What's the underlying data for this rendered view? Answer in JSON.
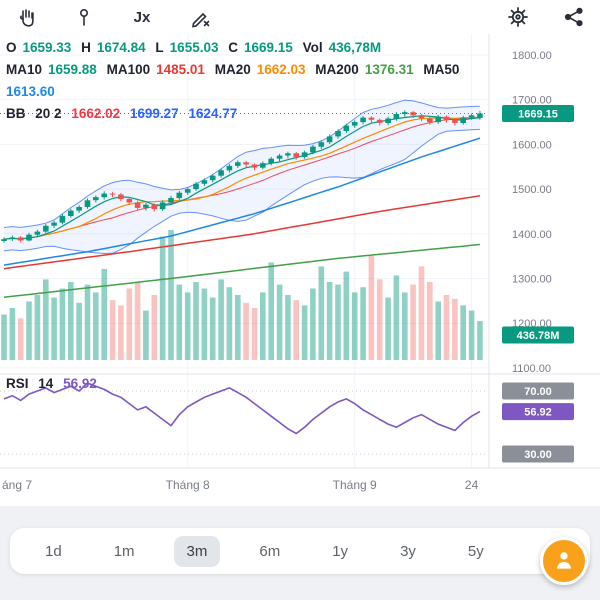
{
  "toolbar": {
    "fx_label": "Jx"
  },
  "legend": {
    "ohlc": [
      {
        "label": "O",
        "value": "1659.33"
      },
      {
        "label": "H",
        "value": "1674.84"
      },
      {
        "label": "L",
        "value": "1655.03"
      },
      {
        "label": "C",
        "value": "1669.15"
      },
      {
        "label": "Vol",
        "value": "436,78M"
      }
    ],
    "ma": [
      {
        "label": "MA10",
        "value": "1659.88"
      },
      {
        "label": "MA100",
        "value": "1485.01"
      },
      {
        "label": "MA20",
        "value": "1662.03"
      },
      {
        "label": "MA200",
        "value": "1376.31"
      },
      {
        "label": "MA50",
        "value": "1613.60"
      }
    ],
    "bb": {
      "name": "BB",
      "params": "20 2",
      "values": [
        "1662.02",
        "1699.27",
        "1624.77"
      ]
    }
  },
  "rsi_legend": {
    "name": "RSI",
    "length": "14",
    "value": "56.92"
  },
  "badges": {
    "price": "1669.15",
    "volume": "436.78M",
    "rsi_upper": "70.00",
    "rsi_value": "56.92",
    "rsi_lower": "30.00"
  },
  "range": {
    "buttons": [
      "1d",
      "1m",
      "3m",
      "6m",
      "1y",
      "3y",
      "5y"
    ],
    "selected_index": 2
  },
  "palette": {
    "up": "#089981",
    "down": "#ef5350",
    "volUp": "rgba(8,153,129,0.45)",
    "volDown": "rgba(239,83,80,0.35)",
    "ma10": "#089981",
    "ma20": "#fb8c00",
    "ma50": "#1e88e5",
    "ma100": "#e53935",
    "ma200": "#43a047",
    "bbBand": "#2962ff",
    "bbBasis": "#f23645",
    "bbFill": "rgba(41,98,255,0.07)",
    "rsi": "#7e57c2",
    "axisText": "#787b86",
    "grid": "#f0f3fa",
    "sep": "#e0e3eb",
    "badgeGray": "#8b8f98",
    "fab": "#f9a11b"
  },
  "chart_data": {
    "type": "candlestick",
    "title": "",
    "readout": {
      "o": 1659.33,
      "h": 1674.84,
      "l": 1655.03,
      "c": 1669.15,
      "vol": "436,78M"
    },
    "indicator_values": {
      "ma10": 1659.88,
      "ma100": 1485.01,
      "ma20": 1662.03,
      "ma200": 1376.31,
      "ma50": 1613.6,
      "bb": [
        1662.02,
        1699.27,
        1624.77
      ],
      "rsi": 56.92
    },
    "price_ticks": [
      1800,
      1700,
      1600,
      1500,
      1400,
      1300,
      1200,
      1100
    ],
    "rsi_ticks": [
      70,
      30
    ],
    "last_price": 1669.15,
    "time_labels": [
      {
        "label": "áng 7",
        "i": null
      },
      {
        "label": "Tháng 8",
        "i": 22
      },
      {
        "label": "Tháng 9",
        "i": 42
      },
      {
        "label": "24",
        "i": 56
      }
    ],
    "candles": [
      [
        1384,
        1392,
        1380,
        1388
      ],
      [
        1388,
        1396,
        1384,
        1392
      ],
      [
        1392,
        1395,
        1380,
        1385
      ],
      [
        1385,
        1402,
        1383,
        1398
      ],
      [
        1398,
        1409,
        1394,
        1405
      ],
      [
        1405,
        1422,
        1402,
        1418
      ],
      [
        1418,
        1429,
        1413,
        1425
      ],
      [
        1425,
        1444,
        1421,
        1440
      ],
      [
        1440,
        1456,
        1436,
        1452
      ],
      [
        1452,
        1464,
        1447,
        1460
      ],
      [
        1460,
        1479,
        1456,
        1475
      ],
      [
        1475,
        1486,
        1470,
        1482
      ],
      [
        1482,
        1495,
        1477,
        1490
      ],
      [
        1490,
        1494,
        1482,
        1488
      ],
      [
        1488,
        1491,
        1473,
        1478
      ],
      [
        1478,
        1482,
        1465,
        1470
      ],
      [
        1470,
        1474,
        1453,
        1458
      ],
      [
        1458,
        1469,
        1452,
        1465
      ],
      [
        1465,
        1468,
        1450,
        1455
      ],
      [
        1455,
        1475,
        1451,
        1470
      ],
      [
        1470,
        1485,
        1465,
        1480
      ],
      [
        1480,
        1496,
        1476,
        1492
      ],
      [
        1492,
        1504,
        1487,
        1500
      ],
      [
        1500,
        1516,
        1496,
        1512
      ],
      [
        1512,
        1524,
        1507,
        1520
      ],
      [
        1520,
        1534,
        1515,
        1530
      ],
      [
        1530,
        1546,
        1526,
        1542
      ],
      [
        1542,
        1556,
        1537,
        1552
      ],
      [
        1552,
        1564,
        1547,
        1560
      ],
      [
        1560,
        1563,
        1549,
        1555
      ],
      [
        1555,
        1558,
        1542,
        1548
      ],
      [
        1548,
        1562,
        1544,
        1558
      ],
      [
        1558,
        1572,
        1553,
        1568
      ],
      [
        1568,
        1579,
        1562,
        1575
      ],
      [
        1575,
        1584,
        1569,
        1580
      ],
      [
        1580,
        1583,
        1566,
        1572
      ],
      [
        1572,
        1586,
        1568,
        1582
      ],
      [
        1582,
        1599,
        1578,
        1595
      ],
      [
        1595,
        1609,
        1590,
        1605
      ],
      [
        1605,
        1622,
        1601,
        1618
      ],
      [
        1618,
        1634,
        1613,
        1630
      ],
      [
        1630,
        1646,
        1625,
        1642
      ],
      [
        1642,
        1654,
        1637,
        1650
      ],
      [
        1650,
        1664,
        1645,
        1660
      ],
      [
        1660,
        1663,
        1649,
        1655
      ],
      [
        1655,
        1658,
        1642,
        1648
      ],
      [
        1648,
        1662,
        1643,
        1658
      ],
      [
        1658,
        1672,
        1653,
        1668
      ],
      [
        1668,
        1676,
        1662,
        1672
      ],
      [
        1672,
        1675,
        1659,
        1665
      ],
      [
        1665,
        1668,
        1652,
        1658
      ],
      [
        1658,
        1661,
        1644,
        1650
      ],
      [
        1650,
        1666,
        1646,
        1662
      ],
      [
        1662,
        1665,
        1649,
        1655
      ],
      [
        1655,
        1658,
        1642,
        1648
      ],
      [
        1648,
        1664,
        1644,
        1660
      ],
      [
        1660,
        1669,
        1655,
        1665
      ],
      [
        1659.33,
        1674.84,
        1655.03,
        1669.15
      ]
    ],
    "volumes": [
      35,
      40,
      32,
      45,
      50,
      62,
      48,
      55,
      60,
      44,
      58,
      52,
      70,
      46,
      42,
      55,
      60,
      38,
      50,
      95,
      100,
      58,
      52,
      60,
      55,
      48,
      62,
      56,
      50,
      44,
      40,
      52,
      75,
      58,
      50,
      46,
      42,
      55,
      72,
      60,
      58,
      68,
      52,
      56,
      80,
      62,
      48,
      65,
      52,
      58,
      72,
      60,
      45,
      50,
      47,
      42,
      38,
      30
    ],
    "rsi": [
      65,
      67,
      64,
      68,
      70,
      72,
      69,
      71,
      73,
      70,
      75,
      73,
      71,
      68,
      66,
      62,
      58,
      60,
      56,
      52,
      48,
      55,
      60,
      63,
      66,
      68,
      70,
      72,
      69,
      66,
      62,
      58,
      54,
      50,
      46,
      43,
      47,
      52,
      56,
      60,
      63,
      65,
      62,
      58,
      55,
      52,
      49,
      47,
      50,
      53,
      55,
      52,
      49,
      47,
      45,
      50,
      54,
      56.92
    ],
    "overlays": {
      "ma50_anchors": [
        [
          0,
          1330
        ],
        [
          10,
          1360
        ],
        [
          20,
          1395
        ],
        [
          30,
          1445
        ],
        [
          40,
          1505
        ],
        [
          50,
          1572
        ],
        [
          57,
          1614
        ]
      ],
      "ma100_anchors": [
        [
          0,
          1322
        ],
        [
          15,
          1360
        ],
        [
          30,
          1400
        ],
        [
          45,
          1450
        ],
        [
          57,
          1485
        ]
      ],
      "ma200_anchors": [
        [
          0,
          1258
        ],
        [
          20,
          1300
        ],
        [
          40,
          1345
        ],
        [
          57,
          1376
        ]
      ]
    }
  }
}
